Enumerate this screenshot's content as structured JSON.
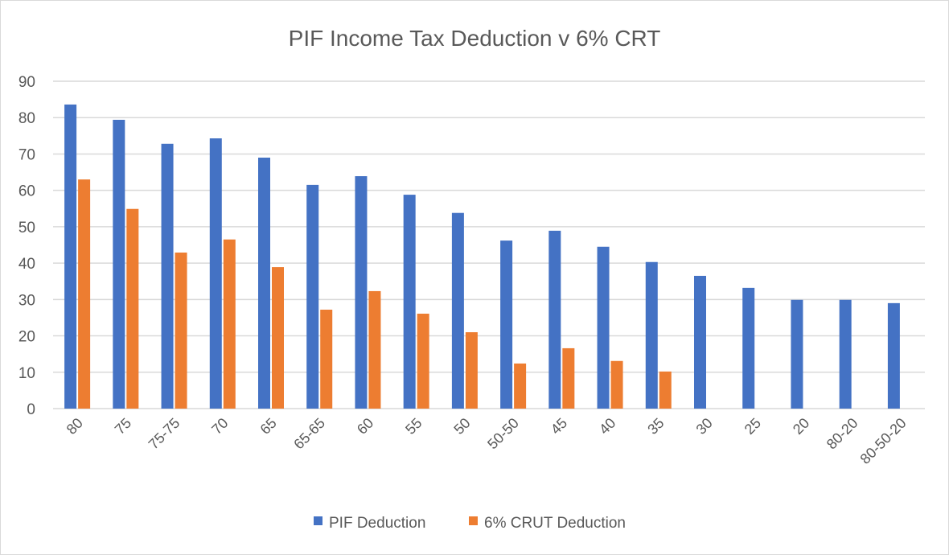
{
  "chart_data": {
    "type": "bar",
    "title": "PIF Income Tax Deduction v 6% CRT",
    "xlabel": "",
    "ylabel": "",
    "ylim": [
      0,
      90
    ],
    "yticks": [
      0,
      10,
      20,
      30,
      40,
      50,
      60,
      70,
      80,
      90
    ],
    "grid": true,
    "legend_position": "bottom",
    "categories": [
      "80",
      "75",
      "75-75",
      "70",
      "65",
      "65-65",
      "60",
      "55",
      "50",
      "50-50",
      "45",
      "40",
      "35",
      "30",
      "25",
      "20",
      "80-20",
      "80-50-20"
    ],
    "series": [
      {
        "name": "PIF Deduction",
        "color": "#4472c4",
        "values": [
          83.6,
          79.4,
          72.8,
          74.3,
          69.0,
          61.5,
          63.9,
          58.8,
          53.8,
          46.2,
          48.9,
          44.5,
          40.3,
          36.5,
          33.2,
          29.9,
          29.9,
          29.0
        ]
      },
      {
        "name": "6% CRUT Deduction",
        "color": "#ed7d31",
        "values": [
          63.0,
          54.9,
          42.9,
          46.5,
          38.9,
          27.2,
          32.3,
          26.1,
          21.0,
          12.4,
          16.6,
          13.1,
          10.2,
          null,
          null,
          null,
          null,
          null
        ]
      }
    ]
  }
}
